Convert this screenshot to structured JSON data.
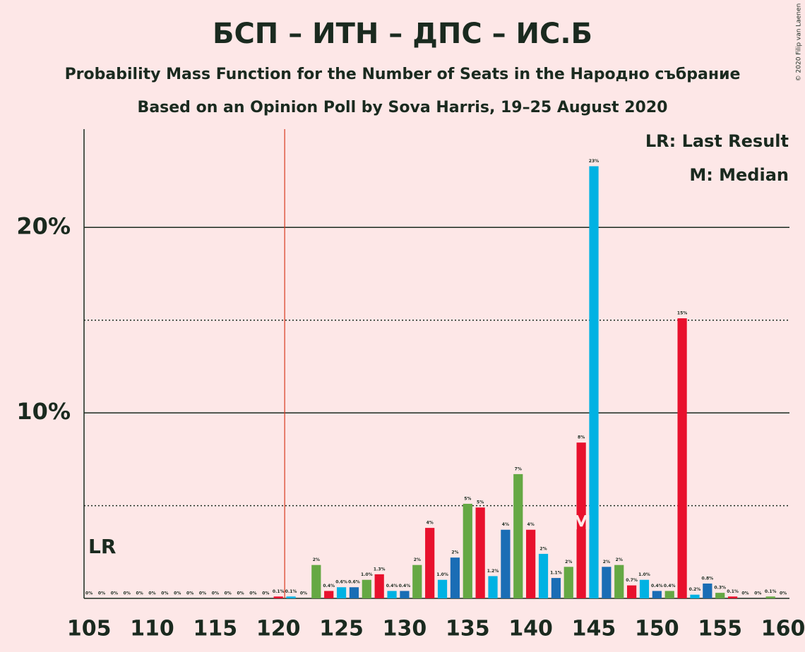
{
  "chart_data": {
    "type": "bar",
    "title": "БСП – ИТН – ДПС – ИС.Б",
    "subtitle": "Probability Mass Function for the Number of Seats in the Народно събрание",
    "subtitle2": "Based on an Opinion Poll by Sova Harris, 19–25 August 2020",
    "copyright": "© 2020 Filip van Laenen",
    "legend": [
      "LR: Last Result",
      "M: Median"
    ],
    "legend_position": "upper right",
    "last_result": 121,
    "last_result_label": "LR",
    "last_result_color": "#d9381e",
    "median": 144,
    "median_label": "M",
    "x": [
      105,
      106,
      107,
      108,
      109,
      110,
      111,
      112,
      113,
      114,
      115,
      116,
      117,
      118,
      119,
      120,
      121,
      122,
      123,
      124,
      125,
      126,
      127,
      128,
      129,
      130,
      131,
      132,
      133,
      134,
      135,
      136,
      137,
      138,
      139,
      140,
      141,
      142,
      143,
      144,
      145,
      146,
      147,
      148,
      149,
      150,
      151,
      152,
      153,
      154,
      155,
      156,
      157,
      158,
      159,
      160
    ],
    "values": [
      0,
      0,
      0,
      0,
      0,
      0,
      0,
      0,
      0,
      0,
      0,
      0,
      0,
      0,
      0,
      0.1,
      0.1,
      0,
      1.8,
      0.4,
      0.6,
      0.6,
      1.0,
      1.3,
      0.4,
      0.4,
      1.8,
      3.8,
      1.0,
      2.2,
      5.1,
      4.9,
      1.2,
      3.7,
      6.7,
      3.7,
      2.4,
      1.1,
      1.7,
      8.4,
      23.3,
      1.7,
      1.8,
      0.7,
      1.0,
      0.4,
      0.4,
      15.1,
      0.2,
      0.8,
      0.3,
      0.1,
      0,
      0,
      0.1,
      0
    ],
    "value_labels": [
      "0%",
      "0%",
      "0%",
      "0%",
      "0%",
      "0%",
      "0%",
      "0%",
      "0%",
      "0%",
      "0%",
      "0%",
      "0%",
      "0%",
      "0%",
      "0.1%",
      "0.1%",
      "0%",
      "2%",
      "0.4%",
      "0.6%",
      "0.6%",
      "1.0%",
      "1.3%",
      "0.4%",
      "0.4%",
      "2%",
      "4%",
      "1.0%",
      "2%",
      "5%",
      "5%",
      "1.2%",
      "4%",
      "7%",
      "4%",
      "2%",
      "1.1%",
      "2%",
      "8%",
      "23%",
      "2%",
      "2%",
      "0.7%",
      "1.0%",
      "0.4%",
      "0.4%",
      "15%",
      "0.2%",
      "0.8%",
      "0.3%",
      "0.1%",
      "0%",
      "0%",
      "0.1%",
      "0%"
    ],
    "palette": [
      "#00b2e3",
      "#1a6db5",
      "#65a844",
      "#e8112d"
    ],
    "xlim": [
      104.6,
      160.5
    ],
    "xticks": [
      105,
      110,
      115,
      120,
      125,
      130,
      135,
      140,
      145,
      150,
      155,
      160
    ],
    "ylim": [
      0,
      25.3
    ],
    "yticks": [
      {
        "value": 10,
        "label": "10%"
      },
      {
        "value": 20,
        "label": "20%"
      }
    ],
    "minor_yticks": [
      5,
      15
    ],
    "grid": true
  }
}
